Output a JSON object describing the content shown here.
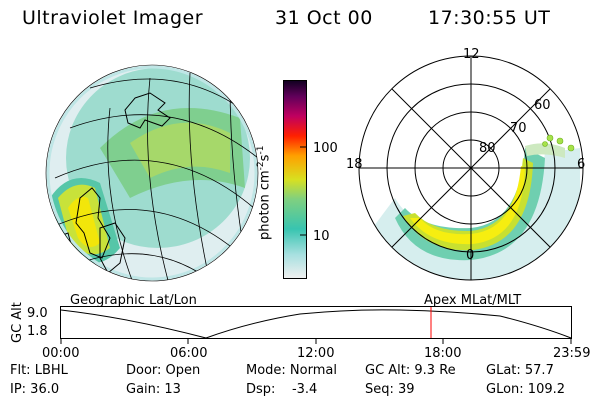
{
  "header": {
    "title": "Ultraviolet Imager",
    "date": "31 Oct 00",
    "time": "17:30:55 UT"
  },
  "colorbar": {
    "label": "photon cm",
    "sup1": "-2",
    "mid": "s",
    "sup2": "-1",
    "ticks": [
      "100",
      "10"
    ]
  },
  "polar": {
    "mlt_labels": [
      "12",
      "18",
      "6",
      "0"
    ],
    "lat_labels": [
      "60",
      "70",
      "80"
    ]
  },
  "orbit": {
    "left_label": "Geographic Lat/Lon",
    "right_label": "Apex MLat/MLT",
    "axis_title": "GC Alt",
    "ytick_top": "9.0",
    "ytick_bottom": "1.8",
    "xticks": [
      "00:00",
      "06:00",
      "12:00",
      "18:00",
      "23:59"
    ],
    "marker_color": "#ff0000"
  },
  "info": {
    "r1": {
      "c1": "Flt: LBHL",
      "c2": "Door: Open",
      "c3": "Mode: Normal",
      "c4": "GC Alt: 9.3 Re",
      "c5": "GLat: 57.7"
    },
    "r2": {
      "c1": "IP: 36.0",
      "c2": "Gain: 13",
      "c3": "Dsp:    -3.4",
      "c4": "Seq: 39",
      "c5": "GLon: 109.2"
    }
  }
}
